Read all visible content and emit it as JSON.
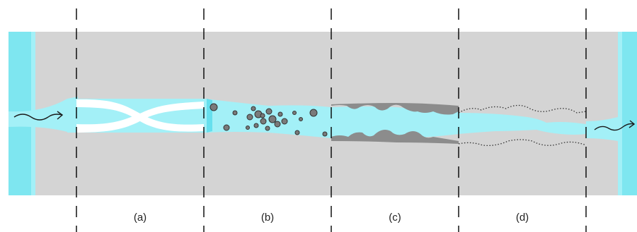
{
  "sections": [
    {
      "label": "(a)"
    },
    {
      "label": "(b)"
    },
    {
      "label": "(c)"
    },
    {
      "label": "(d)"
    }
  ],
  "colors": {
    "rock": "#d4d4d4",
    "fluid": "#a3f0f7",
    "fracture_wall_fluid": "#66e0ee",
    "open_fracture": "#ffffff",
    "particles": "#7a7a7a",
    "deposit": "#8c8c8c",
    "divider": "#000000"
  },
  "icons": {
    "inflow": "wavy-arrow-right-icon",
    "outflow": "wavy-arrow-right-icon"
  }
}
